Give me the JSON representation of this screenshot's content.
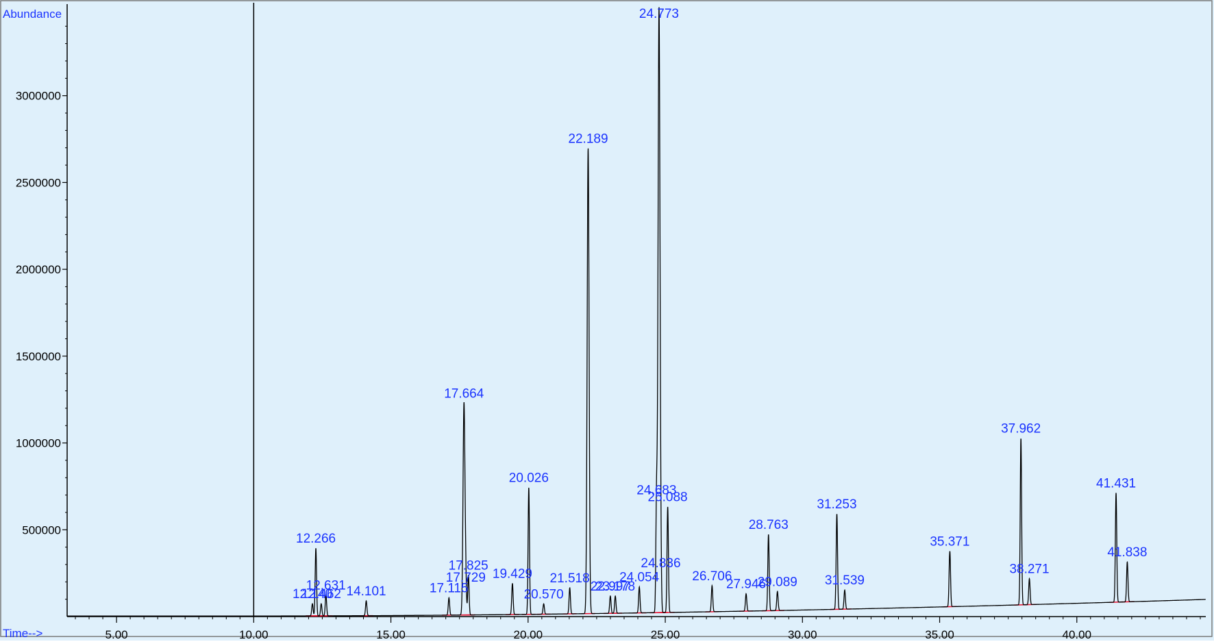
{
  "chart_data": {
    "type": "line",
    "ylabel": "Abundance",
    "xlabel": "Time-->",
    "xlim": [
      3.2,
      44.7
    ],
    "ylim": [
      0,
      3480000
    ],
    "x_ticks": [
      5,
      10,
      15,
      20,
      25,
      30,
      35,
      40
    ],
    "x_tick_labels": [
      "5.00",
      "10.00",
      "15.00",
      "20.00",
      "25.00",
      "30.00",
      "35.00",
      "40.00"
    ],
    "y_ticks": [
      500000,
      1000000,
      1500000,
      2000000,
      2500000,
      3000000
    ],
    "y_tick_labels": [
      "500000",
      "1000000",
      "1500000",
      "2000000",
      "2500000",
      "3000000"
    ],
    "marker_time": 10.0,
    "background_color": "#dff0fb",
    "trace_color": "#000000",
    "label_color": "#1a33ff",
    "integration_color": "#e8102e",
    "peaks": [
      {
        "label": "12.140",
        "rt": 12.14,
        "height": 70000
      },
      {
        "label": "12.266",
        "rt": 12.266,
        "height": 390000
      },
      {
        "label": "12.462",
        "rt": 12.462,
        "height": 70000
      },
      {
        "label": "12.631",
        "rt": 12.631,
        "height": 120000
      },
      {
        "label": "14.101",
        "rt": 14.101,
        "height": 85000
      },
      {
        "label": "17.115",
        "rt": 17.115,
        "height": 100000
      },
      {
        "label": "17.664",
        "rt": 17.664,
        "height": 1220000
      },
      {
        "label": "17.729",
        "rt": 17.729,
        "height": 160000
      },
      {
        "label": "17.825",
        "rt": 17.825,
        "height": 230000
      },
      {
        "label": "19.429",
        "rt": 19.429,
        "height": 180000
      },
      {
        "label": "20.026",
        "rt": 20.026,
        "height": 730000
      },
      {
        "label": "20.570",
        "rt": 20.57,
        "height": 60000
      },
      {
        "label": "21.518",
        "rt": 21.518,
        "height": 150000
      },
      {
        "label": "22.189",
        "rt": 22.189,
        "height": 2680000
      },
      {
        "label": "22.997",
        "rt": 22.997,
        "height": 100000
      },
      {
        "label": "23.178",
        "rt": 23.178,
        "height": 100000
      },
      {
        "label": "24.054",
        "rt": 24.054,
        "height": 150000
      },
      {
        "label": "24.683",
        "rt": 24.683,
        "height": 650000
      },
      {
        "label": "24.773",
        "rt": 24.773,
        "height": 3480000
      },
      {
        "label": "24.836",
        "rt": 24.836,
        "height": 230000
      },
      {
        "label": "25.088",
        "rt": 25.088,
        "height": 610000
      },
      {
        "label": "26.706",
        "rt": 26.706,
        "height": 150000
      },
      {
        "label": "27.946",
        "rt": 27.946,
        "height": 100000
      },
      {
        "label": "28.763",
        "rt": 28.763,
        "height": 440000
      },
      {
        "label": "29.089",
        "rt": 29.089,
        "height": 110000
      },
      {
        "label": "31.253",
        "rt": 31.253,
        "height": 550000
      },
      {
        "label": "31.539",
        "rt": 31.539,
        "height": 110000
      },
      {
        "label": "35.371",
        "rt": 35.371,
        "height": 320000
      },
      {
        "label": "37.962",
        "rt": 37.962,
        "height": 960000
      },
      {
        "label": "38.271",
        "rt": 38.271,
        "height": 150000
      },
      {
        "label": "41.431",
        "rt": 41.431,
        "height": 630000
      },
      {
        "label": "41.838",
        "rt": 41.838,
        "height": 230000
      }
    ]
  }
}
